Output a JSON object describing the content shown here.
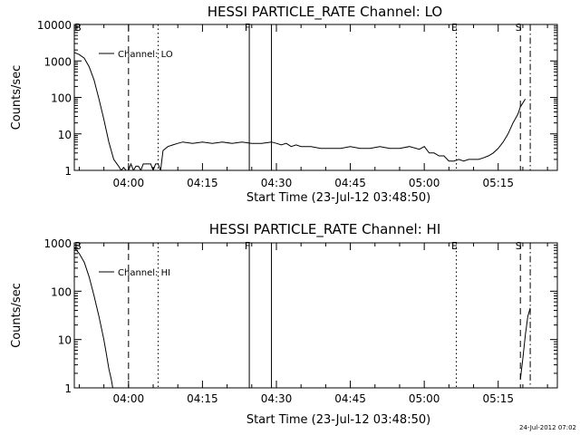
{
  "chart_data": [
    {
      "type": "line",
      "title": "HESSI PARTICLE_RATE Channel: LO",
      "xlabel": "Start Time (23-Jul-12 03:48:50)",
      "ylabel": "Counts/sec",
      "yscale": "log",
      "ylim": [
        1,
        10000
      ],
      "xlim_min": [
        0,
        98
      ],
      "x_tick_min": [
        11,
        26,
        41,
        56,
        71,
        86
      ],
      "x_tick_labels": [
        "04:00",
        "04:15",
        "04:30",
        "04:45",
        "05:00",
        "05:15"
      ],
      "y_ticks": [
        1,
        10,
        100,
        1000,
        10000
      ],
      "y_tick_labels": [
        "1",
        "10",
        "100",
        "1000",
        "10000"
      ],
      "legend": {
        "placement": "top-left",
        "entries": [
          "Channel: LO"
        ]
      },
      "grid": false,
      "series": [
        {
          "name": "Channel: LO",
          "x": [
            0,
            1,
            2,
            3,
            4,
            5,
            6,
            7,
            8,
            9,
            9.5,
            10,
            10.5,
            11,
            11.5,
            12,
            12.5,
            13,
            13.5,
            14,
            14.5,
            15,
            15.5,
            16,
            16.5,
            17,
            17.5,
            18,
            19,
            20,
            21,
            22,
            24,
            26,
            28,
            30,
            32,
            34,
            36,
            38,
            40,
            41,
            42,
            43,
            44,
            45,
            46,
            48,
            50,
            52,
            54,
            56,
            58,
            60,
            62,
            64,
            66,
            68,
            70,
            71,
            72,
            73,
            74,
            75,
            76,
            77,
            78,
            79,
            80,
            81,
            82,
            83,
            84,
            85,
            86,
            87,
            88,
            89,
            90,
            90.5,
            91,
            91.5
          ],
          "values": [
            1700,
            1500,
            1200,
            700,
            300,
            90,
            25,
            6,
            2,
            1.3,
            1,
            1.2,
            1,
            1,
            1.5,
            1,
            1.3,
            1.3,
            1,
            1.5,
            1.5,
            1.5,
            1.5,
            1,
            1.5,
            1.5,
            1,
            3.5,
            4.5,
            5,
            5.5,
            6,
            5.5,
            6,
            5.5,
            6,
            5.5,
            6,
            5.5,
            5.5,
            6,
            5.5,
            5,
            5.5,
            4.5,
            5,
            4.5,
            4.5,
            4,
            4,
            4,
            4.5,
            4,
            4,
            4.5,
            4,
            4,
            4.5,
            3.8,
            4.5,
            3,
            3,
            2.5,
            2.5,
            1.8,
            1.8,
            2,
            1.8,
            2,
            2,
            2,
            2.2,
            2.5,
            3,
            4,
            6,
            10,
            20,
            35,
            55,
            70,
            90
          ]
        }
      ],
      "markers": [
        {
          "min": 11,
          "label": "",
          "style": "dashed"
        },
        {
          "min": 17,
          "label": "",
          "style": "dotted"
        },
        {
          "min": 35.5,
          "label": "F",
          "style": "solid"
        },
        {
          "min": 40,
          "label": "",
          "style": "solid"
        },
        {
          "min": 77.5,
          "label": "E",
          "style": "dotted"
        },
        {
          "min": 90.5,
          "label": "S",
          "style": "dashed"
        },
        {
          "min": 92.5,
          "label": "",
          "style": "dashdot"
        }
      ],
      "corner_label": "B"
    },
    {
      "type": "line",
      "title": "HESSI PARTICLE_RATE Channel: HI",
      "xlabel": "Start Time (23-Jul-12 03:48:50)",
      "ylabel": "Counts/sec",
      "yscale": "log",
      "ylim": [
        1,
        1000
      ],
      "xlim_min": [
        0,
        98
      ],
      "x_tick_min": [
        11,
        26,
        41,
        56,
        71,
        86
      ],
      "x_tick_labels": [
        "04:00",
        "04:15",
        "04:30",
        "04:45",
        "05:00",
        "05:15"
      ],
      "y_ticks": [
        1,
        10,
        100,
        1000
      ],
      "y_tick_labels": [
        "1",
        "10",
        "100",
        "1000"
      ],
      "legend": {
        "placement": "top-left",
        "entries": [
          "Channel: HI"
        ]
      },
      "grid": false,
      "series": [
        {
          "name": "Channel: HI",
          "x": [
            0,
            1,
            2,
            3,
            4,
            5,
            6,
            6.5,
            7,
            7.5,
            7.8
          ],
          "values": [
            800,
            600,
            400,
            200,
            80,
            30,
            10,
            5,
            2.5,
            1.5,
            1
          ]
        },
        {
          "name": "Channel: HI",
          "x": [
            90.5,
            91,
            91.5,
            92,
            92.5
          ],
          "values": [
            1.5,
            4,
            12,
            30,
            45
          ]
        }
      ],
      "markers": [
        {
          "min": 11,
          "label": "",
          "style": "dashed"
        },
        {
          "min": 17,
          "label": "",
          "style": "dotted"
        },
        {
          "min": 35.5,
          "label": "F",
          "style": "solid"
        },
        {
          "min": 40,
          "label": "",
          "style": "solid"
        },
        {
          "min": 77.5,
          "label": "E",
          "style": "dotted"
        },
        {
          "min": 90.5,
          "label": "S",
          "style": "dashed"
        },
        {
          "min": 92.5,
          "label": "",
          "style": "dashdot"
        }
      ],
      "corner_label": "B"
    }
  ],
  "footer": {
    "timestamp": "24-Jul-2012 07:02"
  }
}
